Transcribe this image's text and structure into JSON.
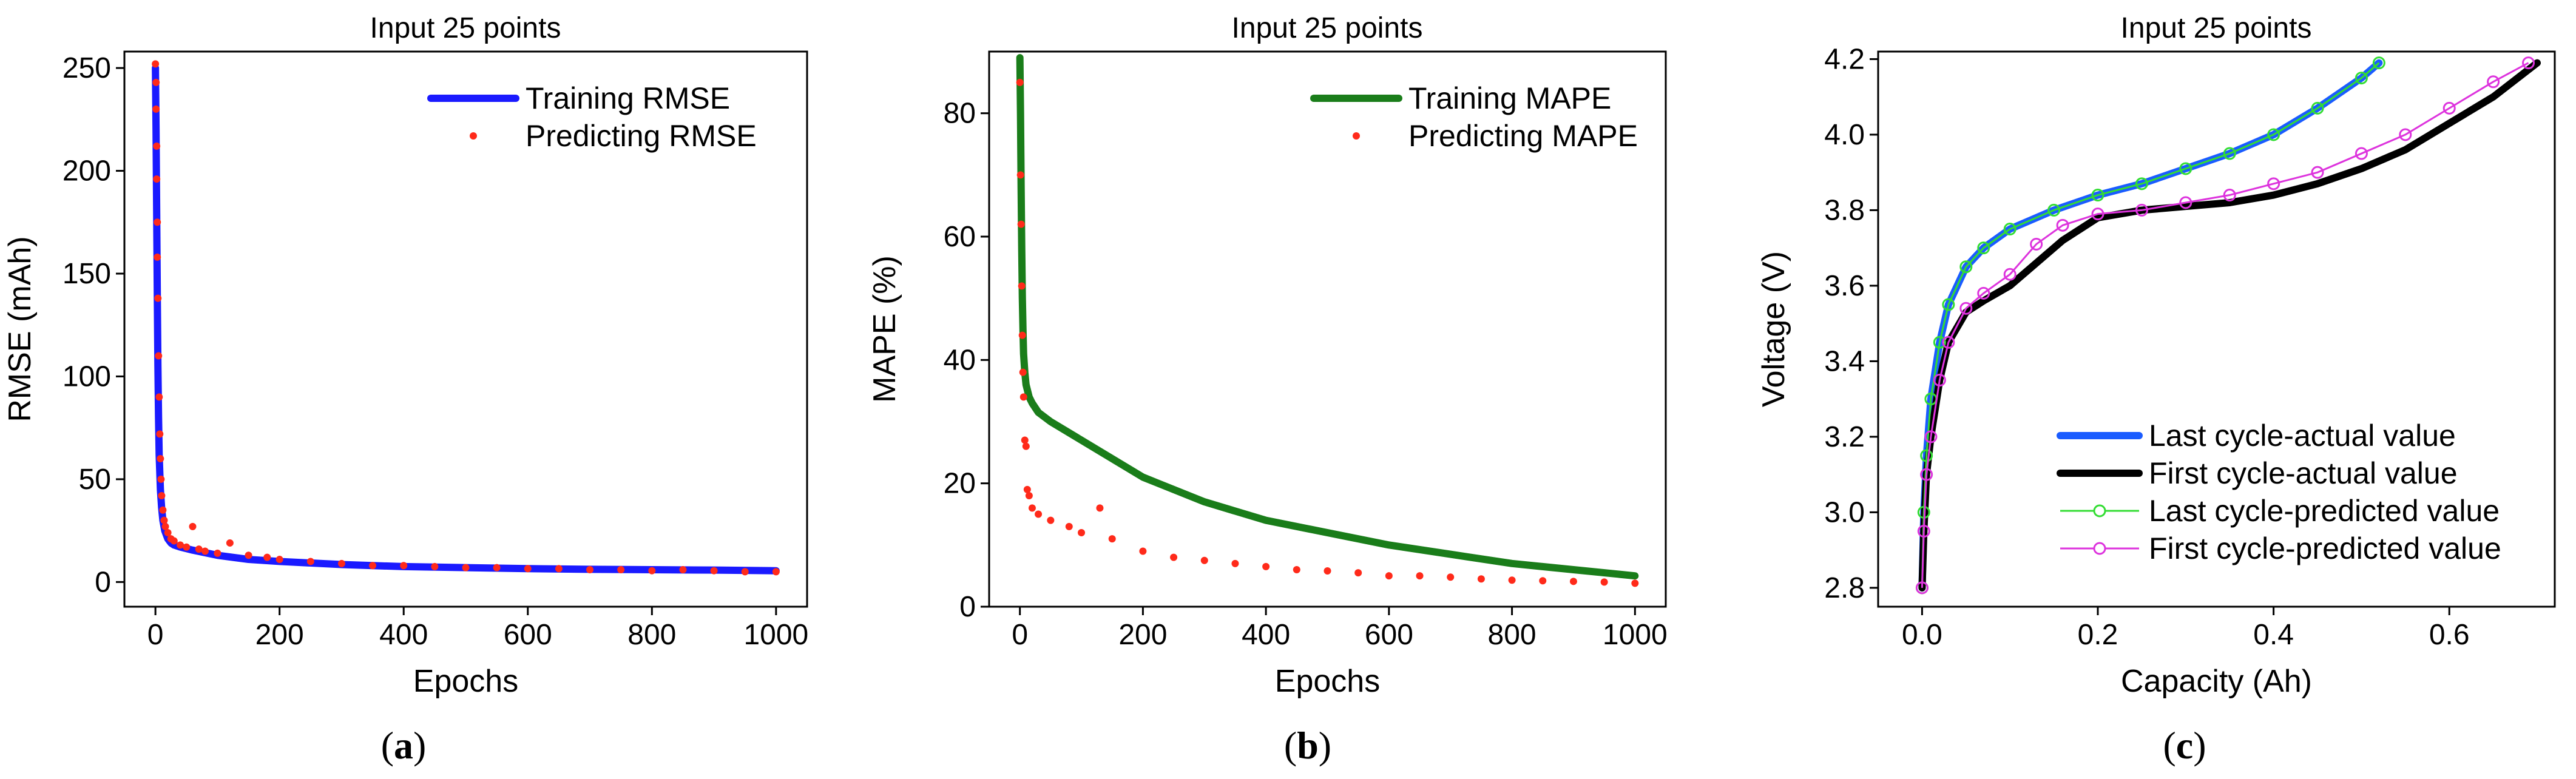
{
  "chart_data": [
    {
      "id": "a",
      "type": "line",
      "title": "Input 25 points",
      "xlabel": "Epochs",
      "ylabel": "RMSE (mAh)",
      "xlim": [
        -50,
        1050
      ],
      "ylim": [
        -12,
        258
      ],
      "xticks": [
        0,
        200,
        400,
        600,
        800,
        1000
      ],
      "yticks": [
        0,
        50,
        100,
        150,
        200,
        250
      ],
      "legend_position": "top-right",
      "series": [
        {
          "name": "Training RMSE",
          "style": "line",
          "color": "#1a1aff",
          "x": [
            0,
            1,
            2,
            3,
            4,
            5,
            6,
            8,
            10,
            12,
            15,
            20,
            25,
            30,
            40,
            60,
            100,
            150,
            200,
            300,
            400,
            500,
            600,
            700,
            800,
            900,
            1000
          ],
          "y": [
            250,
            220,
            180,
            140,
            105,
            80,
            62,
            45,
            36,
            30,
            25,
            21,
            19,
            18,
            17,
            15.5,
            13,
            11,
            10,
            8.5,
            7.5,
            7,
            6.5,
            6.2,
            6,
            5.8,
            5.5
          ]
        },
        {
          "name": "Predicting RMSE",
          "style": "scatter",
          "color": "#ff2a1a",
          "x": [
            0,
            1,
            1,
            2,
            2,
            3,
            3,
            4,
            5,
            6,
            7,
            8,
            9,
            10,
            12,
            14,
            16,
            20,
            25,
            30,
            40,
            50,
            60,
            70,
            80,
            100,
            120,
            150,
            180,
            200,
            250,
            300,
            350,
            400,
            450,
            500,
            550,
            600,
            650,
            700,
            750,
            800,
            850,
            900,
            950,
            1000
          ],
          "y": [
            252,
            243,
            230,
            212,
            196,
            175,
            158,
            138,
            110,
            90,
            72,
            60,
            50,
            42,
            35,
            30,
            27,
            24,
            21,
            20,
            18,
            17,
            27,
            16,
            15,
            14,
            19,
            13,
            12,
            11,
            10,
            9,
            8,
            8,
            7.5,
            7,
            7,
            6.5,
            6.5,
            6,
            6,
            5.5,
            6,
            5.5,
            5,
            5
          ]
        }
      ]
    },
    {
      "id": "b",
      "type": "line",
      "title": "Input 25 points",
      "xlabel": "Epochs",
      "ylabel": "MAPE (%)",
      "xlim": [
        -50,
        1050
      ],
      "ylim": [
        0,
        90
      ],
      "xticks": [
        0,
        200,
        400,
        600,
        800,
        1000
      ],
      "yticks": [
        0,
        20,
        40,
        60,
        80
      ],
      "legend_position": "top-right",
      "series": [
        {
          "name": "Training MAPE",
          "style": "line",
          "color": "#1a7d1a",
          "x": [
            0,
            1,
            2,
            3,
            4,
            5,
            6,
            8,
            10,
            15,
            20,
            30,
            50,
            100,
            150,
            200,
            300,
            400,
            500,
            600,
            700,
            800,
            900,
            1000
          ],
          "y": [
            89,
            80,
            68,
            58,
            50,
            45,
            41,
            38,
            36,
            34,
            33,
            31.5,
            30,
            27,
            24,
            21,
            17,
            14,
            12,
            10,
            8.5,
            7,
            6,
            5
          ]
        },
        {
          "name": "Predicting MAPE",
          "style": "scatter",
          "color": "#ff2a1a",
          "x": [
            0,
            1,
            2,
            3,
            4,
            5,
            6,
            8,
            10,
            12,
            15,
            20,
            30,
            50,
            80,
            100,
            130,
            150,
            200,
            250,
            300,
            350,
            400,
            450,
            500,
            550,
            600,
            650,
            700,
            750,
            800,
            850,
            900,
            950,
            1000
          ],
          "y": [
            85,
            70,
            62,
            52,
            44,
            38,
            34,
            27,
            26,
            19,
            18,
            16,
            15,
            14,
            13,
            12,
            16,
            11,
            9,
            8,
            7.5,
            7,
            6.5,
            6,
            5.8,
            5.5,
            5,
            5,
            4.8,
            4.5,
            4.3,
            4.2,
            4.1,
            4,
            3.8
          ]
        }
      ]
    },
    {
      "id": "c",
      "type": "line",
      "title": "Input 25 points",
      "xlabel": "Capacity (Ah)",
      "ylabel": "Voltage (V)",
      "xlim": [
        -0.05,
        0.72
      ],
      "ylim": [
        2.75,
        4.22
      ],
      "xticks": [
        0.0,
        0.2,
        0.4,
        0.6
      ],
      "yticks": [
        2.8,
        3.0,
        3.2,
        3.4,
        3.6,
        3.8,
        4.0,
        4.2
      ],
      "legend_position": "bottom-right",
      "series": [
        {
          "name": "Last cycle-actual value",
          "style": "line",
          "color": "#1a5cff",
          "x": [
            0,
            0.002,
            0.005,
            0.01,
            0.02,
            0.03,
            0.05,
            0.07,
            0.1,
            0.15,
            0.2,
            0.25,
            0.3,
            0.35,
            0.4,
            0.45,
            0.5,
            0.52
          ],
          "y": [
            2.8,
            3.0,
            3.15,
            3.3,
            3.45,
            3.55,
            3.65,
            3.7,
            3.75,
            3.8,
            3.84,
            3.87,
            3.91,
            3.95,
            4.0,
            4.07,
            4.15,
            4.19
          ]
        },
        {
          "name": "First cycle-actual value",
          "style": "line",
          "color": "#000000",
          "x": [
            0,
            0.002,
            0.005,
            0.01,
            0.02,
            0.03,
            0.05,
            0.07,
            0.1,
            0.13,
            0.16,
            0.2,
            0.25,
            0.3,
            0.35,
            0.4,
            0.45,
            0.5,
            0.55,
            0.6,
            0.65,
            0.7
          ],
          "y": [
            2.8,
            2.95,
            3.1,
            3.2,
            3.35,
            3.45,
            3.53,
            3.56,
            3.6,
            3.66,
            3.72,
            3.78,
            3.8,
            3.81,
            3.82,
            3.84,
            3.87,
            3.91,
            3.96,
            4.03,
            4.1,
            4.19
          ]
        },
        {
          "name": "Last cycle-predicted value",
          "style": "markers",
          "color": "#33dd33",
          "x": [
            0,
            0.002,
            0.005,
            0.01,
            0.02,
            0.03,
            0.05,
            0.07,
            0.1,
            0.15,
            0.2,
            0.25,
            0.3,
            0.35,
            0.4,
            0.45,
            0.5,
            0.52
          ],
          "y": [
            2.8,
            3.0,
            3.15,
            3.3,
            3.45,
            3.55,
            3.65,
            3.7,
            3.75,
            3.8,
            3.84,
            3.87,
            3.91,
            3.95,
            4.0,
            4.07,
            4.15,
            4.19
          ]
        },
        {
          "name": "First cycle-predicted value",
          "style": "markers",
          "color": "#dd33dd",
          "x": [
            0,
            0.002,
            0.005,
            0.01,
            0.02,
            0.03,
            0.05,
            0.07,
            0.1,
            0.13,
            0.16,
            0.2,
            0.25,
            0.3,
            0.35,
            0.4,
            0.45,
            0.5,
            0.55,
            0.6,
            0.65,
            0.69
          ],
          "y": [
            2.8,
            2.95,
            3.1,
            3.2,
            3.35,
            3.45,
            3.54,
            3.58,
            3.63,
            3.71,
            3.76,
            3.79,
            3.8,
            3.82,
            3.84,
            3.87,
            3.9,
            3.95,
            4.0,
            4.07,
            4.14,
            4.19
          ]
        }
      ]
    }
  ],
  "panel_labels": [
    "a",
    "b",
    "c"
  ]
}
